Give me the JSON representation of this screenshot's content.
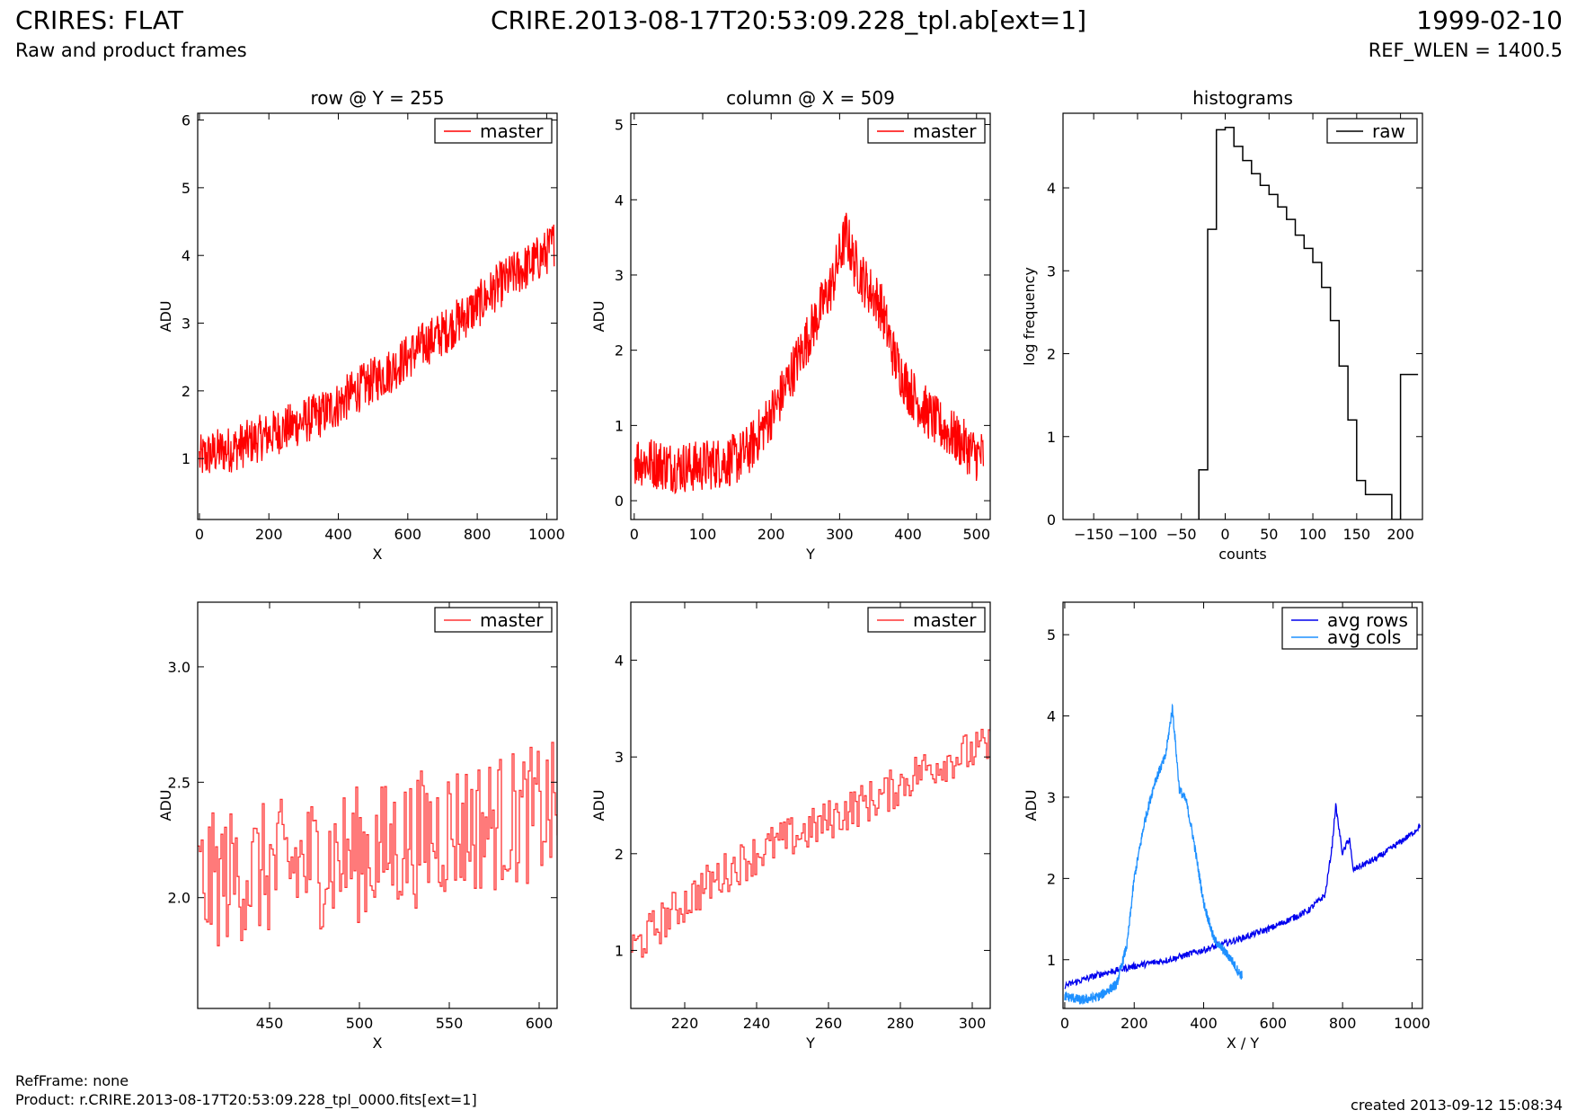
{
  "header": {
    "title_left": "CRIRES: FLAT",
    "title_center": "CRIRE.2013-08-17T20:53:09.228_tpl.ab[ext=1]",
    "title_right": "1999-02-10",
    "subtitle_left": "Raw and product frames",
    "subtitle_right": "REF_WLEN = 1400.5"
  },
  "footer": {
    "refframe": "RefFrame: none",
    "product": "Product: r.CRIRE.2013-08-17T20:53:09.228_tpl_0000.fits[ext=1]",
    "created": "created 2013-09-12 15:08:34"
  },
  "chart_data": [
    {
      "type": "line",
      "title": "row @ Y = 255",
      "xlabel": "X",
      "ylabel": "ADU",
      "xlim": [
        -5,
        1030
      ],
      "ylim": [
        0.1,
        6.1
      ],
      "xticks": [
        0,
        200,
        400,
        600,
        800,
        1000
      ],
      "yticks": [
        1,
        2,
        3,
        4,
        5,
        6
      ],
      "legend_position": "top-right",
      "series": [
        {
          "name": "master",
          "color": "#ff0000",
          "x": [
            0,
            50,
            100,
            150,
            200,
            250,
            300,
            350,
            400,
            450,
            500,
            550,
            600,
            650,
            700,
            750,
            800,
            850,
            900,
            950,
            1000,
            1023
          ],
          "y": [
            1.0,
            1.1,
            1.15,
            1.25,
            1.35,
            1.45,
            1.55,
            1.65,
            1.8,
            2.0,
            2.15,
            2.3,
            2.5,
            2.7,
            2.85,
            3.05,
            3.25,
            3.5,
            3.7,
            3.85,
            4.05,
            4.2
          ],
          "noise": 0.35
        }
      ]
    },
    {
      "type": "line",
      "title": "column @ X = 509",
      "xlabel": "Y",
      "ylabel": "ADU",
      "xlim": [
        -5,
        520
      ],
      "ylim": [
        -0.25,
        5.15
      ],
      "xticks": [
        0,
        100,
        200,
        300,
        400,
        500
      ],
      "yticks": [
        0,
        1,
        2,
        3,
        4,
        5
      ],
      "legend_position": "top-right",
      "series": [
        {
          "name": "master",
          "color": "#ff0000",
          "x": [
            0,
            30,
            60,
            90,
            120,
            150,
            170,
            190,
            210,
            230,
            250,
            270,
            290,
            300,
            310,
            320,
            340,
            360,
            380,
            400,
            420,
            440,
            460,
            480,
            500,
            510
          ],
          "y": [
            0.55,
            0.5,
            0.45,
            0.45,
            0.5,
            0.55,
            0.7,
            1.0,
            1.3,
            1.7,
            2.1,
            2.5,
            2.9,
            3.25,
            3.55,
            3.2,
            2.85,
            2.6,
            1.9,
            1.5,
            1.25,
            1.05,
            0.9,
            0.75,
            0.6,
            0.6
          ],
          "noise": 0.35
        }
      ]
    },
    {
      "type": "line",
      "title": "histograms",
      "xlabel": "counts",
      "ylabel": "log frequency",
      "xlim": [
        -185,
        225
      ],
      "ylim": [
        0,
        4.9
      ],
      "xticks": [
        -150,
        -100,
        -50,
        0,
        50,
        100,
        150,
        200
      ],
      "yticks": [
        0,
        1,
        2,
        3,
        4
      ],
      "legend_position": "top-right",
      "series": [
        {
          "name": "raw",
          "color": "#000000",
          "step_edges": [
            -30,
            -20,
            -10,
            0,
            10,
            20,
            30,
            40,
            50,
            60,
            70,
            80,
            90,
            100,
            110,
            120,
            130,
            140,
            150,
            160,
            170,
            180,
            190,
            200,
            210,
            220
          ],
          "step_values": [
            0.6,
            3.5,
            4.7,
            4.73,
            4.5,
            4.33,
            4.17,
            4.03,
            3.92,
            3.77,
            3.62,
            3.43,
            3.27,
            3.1,
            2.8,
            2.4,
            1.85,
            1.2,
            0.47,
            0.3,
            0.3,
            0.3,
            0,
            1.75,
            1.75
          ]
        }
      ]
    },
    {
      "type": "line",
      "title": "",
      "xlabel": "X",
      "ylabel": "ADU",
      "xlim": [
        410,
        610
      ],
      "ylim": [
        1.52,
        3.28
      ],
      "xticks": [
        450,
        500,
        550,
        600
      ],
      "yticks": [
        2.0,
        2.5,
        3.0
      ],
      "legend_position": "top-right",
      "series": [
        {
          "name": "master",
          "color": "#ff3333",
          "x": [
            410,
            430,
            450,
            470,
            490,
            510,
            530,
            550,
            570,
            590,
            610
          ],
          "y": [
            2.05,
            2.1,
            2.12,
            2.15,
            2.18,
            2.2,
            2.25,
            2.3,
            2.32,
            2.35,
            2.38
          ],
          "noise": 0.3,
          "step": true
        }
      ]
    },
    {
      "type": "line",
      "title": "",
      "xlabel": "Y",
      "ylabel": "ADU",
      "xlim": [
        205,
        305
      ],
      "ylim": [
        0.4,
        4.6
      ],
      "xticks": [
        220,
        240,
        260,
        280,
        300
      ],
      "yticks": [
        1,
        2,
        3,
        4
      ],
      "legend_position": "top-right",
      "series": [
        {
          "name": "master",
          "color": "#ff3333",
          "x": [
            205,
            215,
            225,
            235,
            245,
            255,
            265,
            275,
            285,
            295,
            305
          ],
          "y": [
            1.0,
            1.35,
            1.65,
            1.9,
            2.1,
            2.25,
            2.45,
            2.6,
            2.85,
            3.0,
            3.1
          ],
          "noise": 0.22,
          "step": true
        }
      ]
    },
    {
      "type": "line",
      "title": "",
      "xlabel": "X / Y",
      "ylabel": "ADU",
      "xlim": [
        -5,
        1030
      ],
      "ylim": [
        0.4,
        5.4
      ],
      "xticks": [
        0,
        200,
        400,
        600,
        800,
        1000
      ],
      "yticks": [
        1,
        2,
        3,
        4,
        5
      ],
      "legend_position": "top-right",
      "series": [
        {
          "name": "avg rows",
          "color": "#0000ee",
          "x": [
            0,
            100,
            200,
            300,
            400,
            500,
            600,
            700,
            750,
            770,
            780,
            790,
            800,
            820,
            830,
            850,
            900,
            950,
            1000,
            1023
          ],
          "y": [
            0.68,
            0.82,
            0.92,
            1.0,
            1.12,
            1.25,
            1.4,
            1.6,
            1.8,
            2.4,
            2.9,
            2.6,
            2.3,
            2.5,
            2.1,
            2.15,
            2.25,
            2.4,
            2.55,
            2.65
          ],
          "noise": 0.04
        },
        {
          "name": "avg cols",
          "color": "#1e90ff",
          "x": [
            0,
            50,
            100,
            150,
            180,
            200,
            230,
            260,
            290,
            310,
            330,
            350,
            370,
            400,
            430,
            460,
            480,
            500,
            511
          ],
          "y": [
            0.55,
            0.5,
            0.55,
            0.7,
            1.2,
            2.0,
            2.7,
            3.2,
            3.5,
            4.1,
            3.1,
            2.95,
            2.5,
            1.7,
            1.25,
            1.1,
            1.0,
            0.85,
            0.8
          ],
          "noise": 0.06
        }
      ]
    }
  ]
}
